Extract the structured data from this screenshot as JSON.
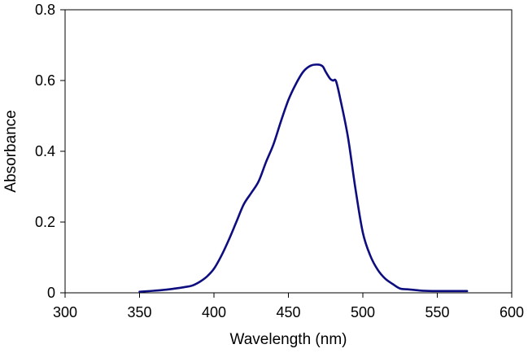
{
  "chart_data": {
    "type": "line",
    "title": "",
    "xlabel": "Wavelength (nm)",
    "ylabel": "Absorbance",
    "xlim": [
      300,
      600
    ],
    "ylim": [
      0,
      0.8
    ],
    "x_ticks": [
      300,
      350,
      400,
      450,
      500,
      550,
      600
    ],
    "x_tick_labels": [
      "300",
      "350",
      "400",
      "450",
      "500",
      "550",
      "600"
    ],
    "y_ticks": [
      0,
      0.2,
      0.4,
      0.6,
      0.8
    ],
    "y_tick_labels": [
      "0",
      "0.2",
      "0.4",
      "0.6",
      "0.8"
    ],
    "grid": false,
    "legend": "none",
    "colors": {
      "line": "#0d0d80",
      "axis": "#000000"
    },
    "series": [
      {
        "x": [
          350,
          360,
          370,
          380,
          385,
          390,
          395,
          400,
          405,
          410,
          415,
          420,
          425,
          430,
          435,
          440,
          445,
          450,
          455,
          460,
          465,
          470,
          473,
          475,
          478,
          480,
          482,
          485,
          490,
          495,
          500,
          505,
          510,
          515,
          520,
          525,
          530,
          535,
          540,
          550,
          560,
          570
        ],
        "y": [
          0.003,
          0.006,
          0.01,
          0.016,
          0.02,
          0.03,
          0.045,
          0.068,
          0.105,
          0.15,
          0.2,
          0.25,
          0.282,
          0.315,
          0.37,
          0.42,
          0.485,
          0.545,
          0.59,
          0.625,
          0.642,
          0.645,
          0.64,
          0.625,
          0.605,
          0.6,
          0.598,
          0.545,
          0.44,
          0.295,
          0.17,
          0.105,
          0.065,
          0.04,
          0.025,
          0.012,
          0.01,
          0.008,
          0.006,
          0.005,
          0.005,
          0.005
        ]
      }
    ]
  }
}
